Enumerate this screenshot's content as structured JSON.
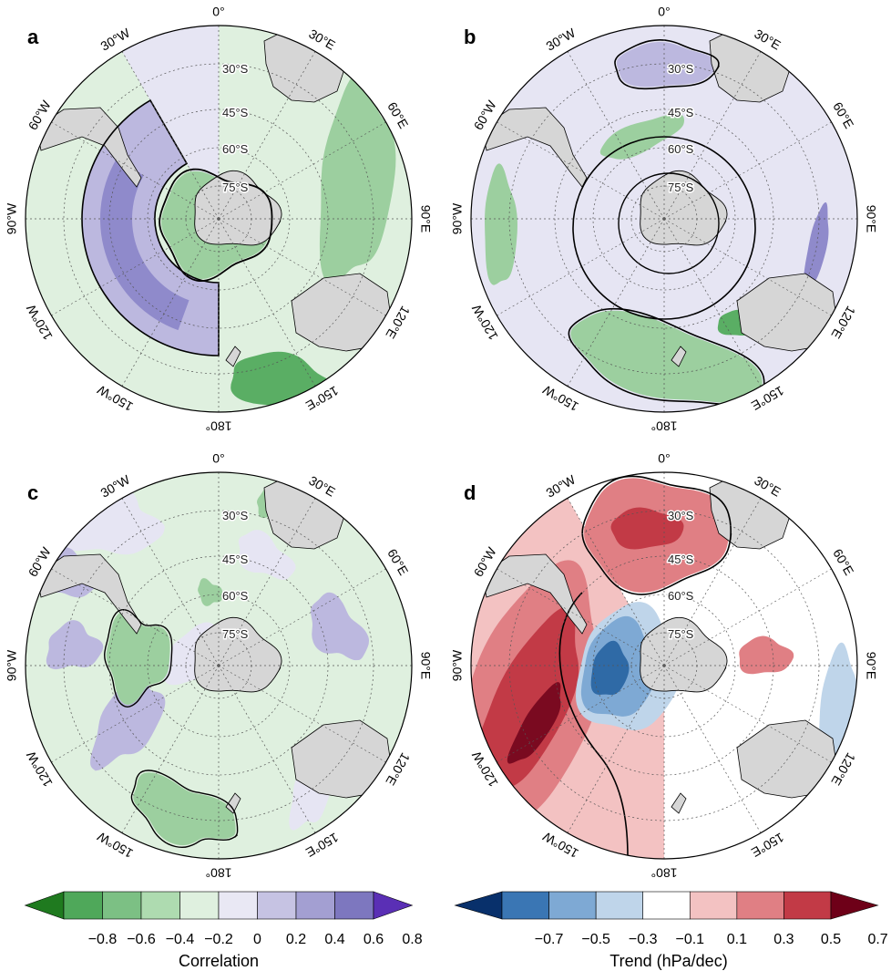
{
  "panels": [
    {
      "letter": "a",
      "type": "correlation"
    },
    {
      "letter": "b",
      "type": "correlation"
    },
    {
      "letter": "c",
      "type": "correlation"
    },
    {
      "letter": "d",
      "type": "trend"
    }
  ],
  "longitude_labels": [
    "0°",
    "30°E",
    "60°E",
    "90°E",
    "120°E",
    "150°E",
    "180°",
    "150°W",
    "120°W",
    "90°W",
    "60°W",
    "30°W"
  ],
  "latitude_labels": [
    "30°S",
    "45°S",
    "60°S",
    "75°S"
  ],
  "colorbars": {
    "correlation": {
      "title": "Correlation",
      "ticks": [
        "−0.8",
        "−0.6",
        "−0.4",
        "−0.2",
        "0",
        "0.2",
        "0.4",
        "0.6",
        "0.8"
      ],
      "colors": [
        "#1f7a1f",
        "#4fa85a",
        "#7cc084",
        "#aedbb0",
        "#dff0df",
        "#e9e8f4",
        "#c6c3e3",
        "#a39fd2",
        "#7d77bf",
        "#5a2fb5"
      ]
    },
    "trend": {
      "title": "Trend (hPa/dec)",
      "ticks": [
        "−0.7",
        "−0.5",
        "−0.3",
        "−0.1",
        "0.1",
        "0.3",
        "0.5",
        "0.7"
      ],
      "colors": [
        "#08306b",
        "#3a76b4",
        "#7ea9d4",
        "#bfd5ea",
        "#ffffff",
        "#f3c2c2",
        "#e07f84",
        "#c23a46",
        "#6e0018"
      ]
    }
  },
  "colors": {
    "land": "#d6d6d6",
    "green_light": "#dff0df",
    "green_mid": "#9ccf9f",
    "green_dark": "#5aae64",
    "purple_light": "#e6e5f3",
    "purple_mid": "#bcb8df",
    "purple_dark": "#8f8acb",
    "red_light": "#f3c2c2",
    "red_mid": "#e07f84",
    "red_dark": "#c23a46",
    "red_darkest": "#7a0a20",
    "blue_light": "#bfd5ea",
    "blue_mid": "#7ea9d4",
    "blue_dark": "#2f6aa6"
  }
}
